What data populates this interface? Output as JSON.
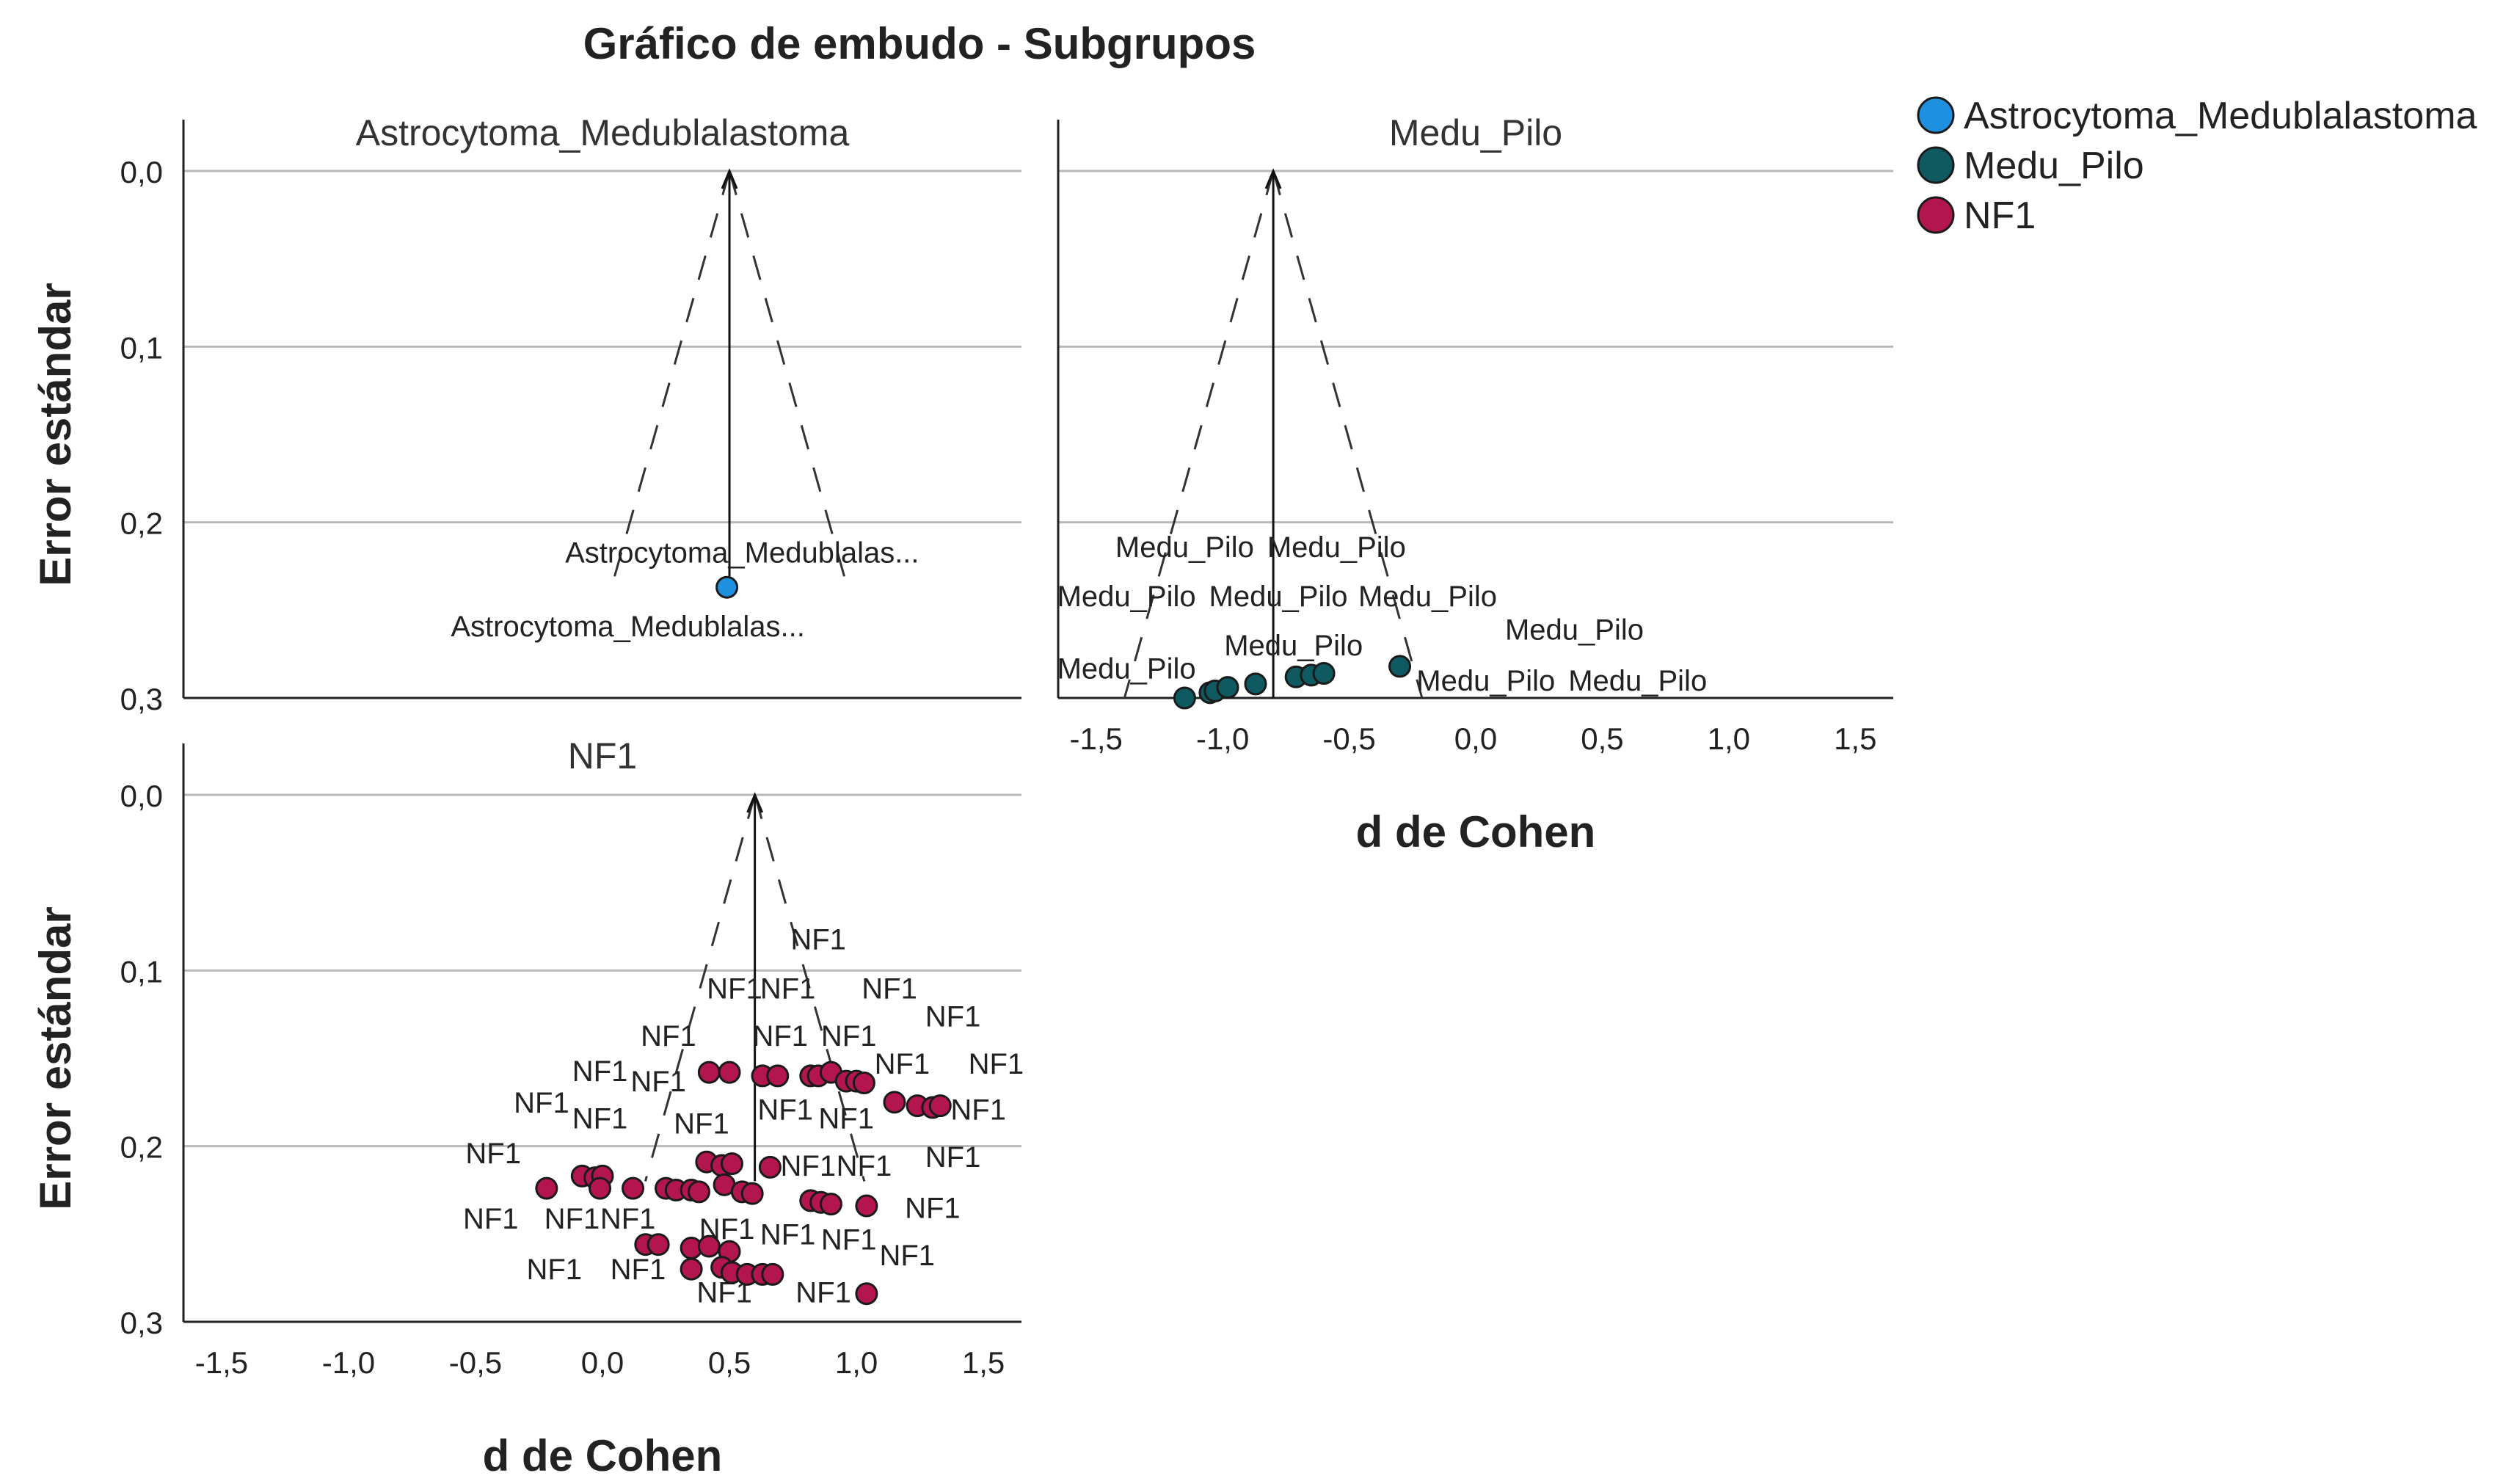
{
  "chart_data": {
    "type": "scatter",
    "title": "Gráfico de embudo - Subgrupos",
    "xlabel": "d de Cohen",
    "ylabel": "Error estándar",
    "xlim": [
      -1.65,
      1.65
    ],
    "ylim": [
      0,
      0.3
    ],
    "y_reversed": true,
    "xticks": [
      "-1,5",
      "-1,0",
      "-0,5",
      "0,0",
      "0,5",
      "1,0",
      "1,5"
    ],
    "xtick_values": [
      -1.5,
      -1.0,
      -0.5,
      0.0,
      0.5,
      1.0,
      1.5
    ],
    "yticks": [
      "0,0",
      "0,1",
      "0,2",
      "0,3"
    ],
    "ytick_values": [
      0.0,
      0.1,
      0.2,
      0.3
    ],
    "grid": "horizontal",
    "legend_position": "top-right",
    "legend": [
      {
        "name": "Astrocytoma_Medublalastoma",
        "color": "#1f8fe0"
      },
      {
        "name": "Medu_Pilo",
        "color": "#0f5960"
      },
      {
        "name": "NF1",
        "color": "#b3164e"
      }
    ],
    "panels": [
      {
        "title": "Astrocytoma_Medublalastoma",
        "color": "#1f8fe0",
        "center": 0.5,
        "funnel_bottom": 0.235,
        "points": [
          [
            0.49,
            0.237
          ]
        ],
        "labels": [
          {
            "text": "Astrocytoma_Medublalas...",
            "x": 0.55,
            "y": 0.217
          },
          {
            "text": "Astrocytoma_Medublalas...",
            "x": 0.1,
            "y": 0.259
          }
        ]
      },
      {
        "title": "Medu_Pilo",
        "color": "#0f5960",
        "center": -0.8,
        "funnel_bottom": 0.3,
        "points": [
          [
            -1.15,
            0.3
          ],
          [
            -1.05,
            0.297
          ],
          [
            -1.03,
            0.296
          ],
          [
            -0.98,
            0.294
          ],
          [
            -0.87,
            0.292
          ],
          [
            -0.71,
            0.288
          ],
          [
            -0.65,
            0.287
          ],
          [
            -0.6,
            0.286
          ],
          [
            -0.3,
            0.282
          ]
        ],
        "labels": [
          {
            "text": "Medu_Pilo",
            "x": -1.15,
            "y": 0.214
          },
          {
            "text": "Medu_Pilo",
            "x": -0.55,
            "y": 0.214
          },
          {
            "text": "Medu_Pilo",
            "x": -1.38,
            "y": 0.242
          },
          {
            "text": "Medu_Pilo",
            "x": -0.78,
            "y": 0.242
          },
          {
            "text": "Medu_Pilo",
            "x": -0.19,
            "y": 0.242
          },
          {
            "text": "Medu_Pilo",
            "x": 0.39,
            "y": 0.261
          },
          {
            "text": "Medu_Pilo",
            "x": -1.38,
            "y": 0.283
          },
          {
            "text": "Medu_Pilo",
            "x": -0.72,
            "y": 0.27
          },
          {
            "text": "Medu_Pilo",
            "x": 0.04,
            "y": 0.29
          },
          {
            "text": "Medu_Pilo",
            "x": 0.64,
            "y": 0.29
          }
        ]
      },
      {
        "title": "NF1",
        "color": "#b3164e",
        "center": 0.6,
        "funnel_bottom": 0.22,
        "points": [
          [
            0.42,
            0.158
          ],
          [
            0.5,
            0.158
          ],
          [
            0.63,
            0.16
          ],
          [
            0.69,
            0.16
          ],
          [
            0.82,
            0.16
          ],
          [
            0.85,
            0.16
          ],
          [
            0.9,
            0.158
          ],
          [
            0.96,
            0.163
          ],
          [
            1.0,
            0.163
          ],
          [
            1.03,
            0.164
          ],
          [
            1.15,
            0.175
          ],
          [
            1.24,
            0.177
          ],
          [
            1.3,
            0.178
          ],
          [
            1.33,
            0.177
          ],
          [
            -0.22,
            0.224
          ],
          [
            -0.08,
            0.217
          ],
          [
            -0.03,
            0.218
          ],
          [
            0.0,
            0.217
          ],
          [
            -0.01,
            0.224
          ],
          [
            0.12,
            0.224
          ],
          [
            0.25,
            0.224
          ],
          [
            0.29,
            0.225
          ],
          [
            0.35,
            0.225
          ],
          [
            0.38,
            0.226
          ],
          [
            0.41,
            0.209
          ],
          [
            0.47,
            0.211
          ],
          [
            0.51,
            0.21
          ],
          [
            0.48,
            0.222
          ],
          [
            0.55,
            0.226
          ],
          [
            0.59,
            0.227
          ],
          [
            0.66,
            0.212
          ],
          [
            0.82,
            0.231
          ],
          [
            0.86,
            0.232
          ],
          [
            0.9,
            0.233
          ],
          [
            1.04,
            0.234
          ],
          [
            0.17,
            0.256
          ],
          [
            0.22,
            0.256
          ],
          [
            0.35,
            0.258
          ],
          [
            0.42,
            0.257
          ],
          [
            0.5,
            0.26
          ],
          [
            0.35,
            0.27
          ],
          [
            0.47,
            0.269
          ],
          [
            0.51,
            0.272
          ],
          [
            0.57,
            0.273
          ],
          [
            0.63,
            0.273
          ],
          [
            0.67,
            0.273
          ],
          [
            1.04,
            0.284
          ]
        ],
        "labels": [
          {
            "text": "NF1",
            "x": 0.85,
            "y": 0.082
          },
          {
            "text": "NF1",
            "x": 0.52,
            "y": 0.11
          },
          {
            "text": "NF1",
            "x": 0.73,
            "y": 0.11
          },
          {
            "text": "NF1",
            "x": 1.13,
            "y": 0.11
          },
          {
            "text": "NF1",
            "x": 1.38,
            "y": 0.126
          },
          {
            "text": "NF1",
            "x": 0.26,
            "y": 0.137
          },
          {
            "text": "NF1",
            "x": 0.7,
            "y": 0.137
          },
          {
            "text": "NF1",
            "x": 0.97,
            "y": 0.137
          },
          {
            "text": "NF1",
            "x": -0.01,
            "y": 0.157
          },
          {
            "text": "NF1",
            "x": 0.22,
            "y": 0.163
          },
          {
            "text": "NF1",
            "x": 1.18,
            "y": 0.153
          },
          {
            "text": "NF1",
            "x": 1.55,
            "y": 0.153
          },
          {
            "text": "NF1",
            "x": -0.24,
            "y": 0.175
          },
          {
            "text": "NF1",
            "x": -0.01,
            "y": 0.184
          },
          {
            "text": "NF1",
            "x": 0.72,
            "y": 0.179
          },
          {
            "text": "NF1",
            "x": 1.48,
            "y": 0.179
          },
          {
            "text": "NF1",
            "x": 0.39,
            "y": 0.187
          },
          {
            "text": "NF1",
            "x": 0.96,
            "y": 0.184
          },
          {
            "text": "NF1",
            "x": -0.43,
            "y": 0.204
          },
          {
            "text": "NF1",
            "x": 0.81,
            "y": 0.211
          },
          {
            "text": "NF1",
            "x": 1.03,
            "y": 0.211
          },
          {
            "text": "NF1",
            "x": 1.38,
            "y": 0.206
          },
          {
            "text": "NF1",
            "x": 1.3,
            "y": 0.235
          },
          {
            "text": "NF1",
            "x": -0.44,
            "y": 0.241
          },
          {
            "text": "NF1",
            "x": -0.12,
            "y": 0.241
          },
          {
            "text": "NF1",
            "x": 0.1,
            "y": 0.241
          },
          {
            "text": "NF1",
            "x": 0.49,
            "y": 0.247
          },
          {
            "text": "NF1",
            "x": 0.73,
            "y": 0.25
          },
          {
            "text": "NF1",
            "x": 0.97,
            "y": 0.253
          },
          {
            "text": "NF1",
            "x": 1.2,
            "y": 0.262
          },
          {
            "text": "NF1",
            "x": -0.19,
            "y": 0.27
          },
          {
            "text": "NF1",
            "x": 0.14,
            "y": 0.27
          },
          {
            "text": "NF1",
            "x": 0.48,
            "y": 0.283
          },
          {
            "text": "NF1",
            "x": 0.87,
            "y": 0.283
          }
        ]
      }
    ]
  }
}
